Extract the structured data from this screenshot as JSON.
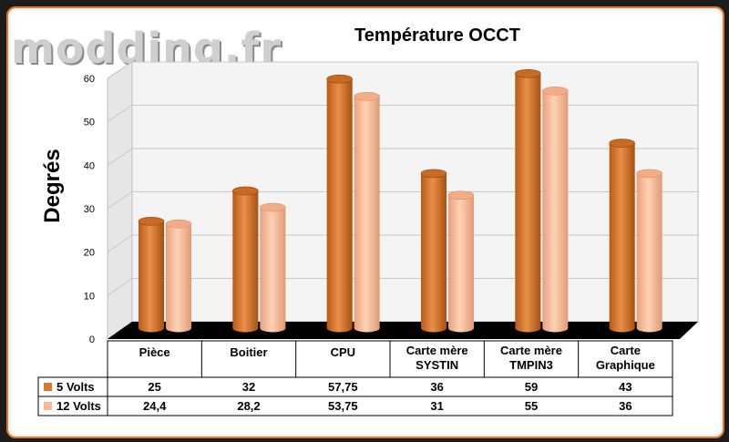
{
  "logo_text": "modding.fr",
  "chart_data": {
    "type": "bar",
    "title": "Température OCCT",
    "ylabel": "Degrés",
    "xlabel": "",
    "ylim": [
      0,
      60
    ],
    "yticks": [
      0,
      10,
      20,
      30,
      40,
      50,
      60
    ],
    "categories": [
      [
        "Pièce"
      ],
      [
        "Boitier"
      ],
      [
        "CPU"
      ],
      [
        "Carte mère",
        "SYSTIN"
      ],
      [
        "Carte mère",
        "TMPIN3"
      ],
      [
        "Carte",
        "Graphique"
      ]
    ],
    "series": [
      {
        "name": "5 Volts",
        "color": "#d9782e",
        "values": [
          25,
          32,
          57.75,
          36,
          59,
          43
        ],
        "labels": [
          "25",
          "32",
          "57,75",
          "36",
          "59",
          "43"
        ]
      },
      {
        "name": "12 Volts",
        "color": "#f9b891",
        "values": [
          24.4,
          28.2,
          53.75,
          31,
          55,
          36
        ],
        "labels": [
          "24,4",
          "28,2",
          "53,75",
          "31",
          "55",
          "36"
        ]
      }
    ],
    "grid": true,
    "legend": "table"
  }
}
